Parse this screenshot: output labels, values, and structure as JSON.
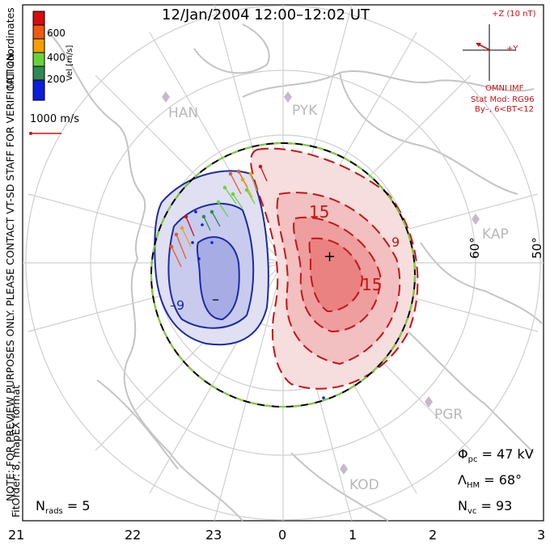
{
  "title": "12/Jan/2004 12:00–12:02 UT",
  "colorbar": {
    "label": "Vel [m/s]",
    "ticks": [
      "600",
      "400",
      "200"
    ],
    "colors": [
      "#0b1edc",
      "#2f8a52",
      "#67d33a",
      "#f0a000",
      "#f05a10",
      "#d80c0c"
    ]
  },
  "coord_label": "MLT coordinates",
  "velocity_scale": "1000 m/s",
  "notes": {
    "preview": "NOTE: FOR PREVIEW PURPOSES ONLY. PLEASE CONTACT VT-SD STAFF FOR VERIFICATION.",
    "fit": "FitOrder: 8, mapEX format"
  },
  "imf": {
    "z_label": "+Z (10 nT)",
    "y_label": "+Y",
    "source": "OMNI IMF",
    "model_line1": "Stat Mod: RG96",
    "model_line2": "By–, 6<BT<12"
  },
  "sites": [
    "HAN",
    "PYK",
    "KAP",
    "PGR",
    "KOD"
  ],
  "latitude_labels": [
    "60°",
    "50°"
  ],
  "contour_labels": [
    "15",
    "15",
    "9",
    "–9"
  ],
  "cell_markers": [
    "+",
    "–"
  ],
  "stats": {
    "phi_pc": "= 47 kV",
    "lambda_hm": "= 68°",
    "n_vc": "= 93",
    "n_rads": "= 5"
  },
  "mlt_labels": [
    "21",
    "22",
    "23",
    "0",
    "1",
    "2",
    "3"
  ],
  "colors": {
    "positive_contour": "#c81414",
    "negative_contour": "#1a2aa8",
    "positive_fill": "#f2a0a0",
    "negative_fill": "#b4b8e4",
    "map": "#bdbdbd",
    "boundary_green": "#7ed23a"
  }
}
